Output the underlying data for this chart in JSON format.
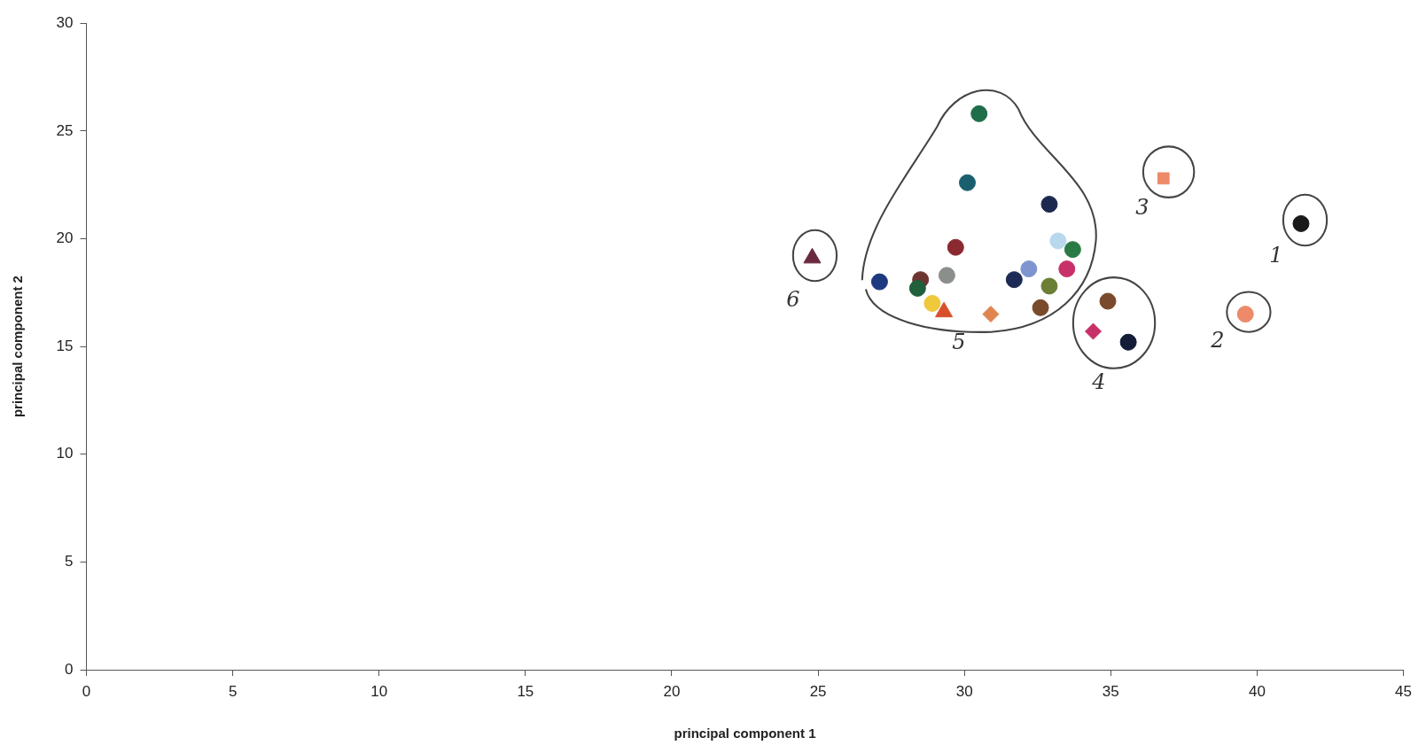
{
  "chart_data": {
    "type": "scatter",
    "xlabel": "principal component 1",
    "ylabel": "principal component 2",
    "xlim": [
      0,
      45
    ],
    "ylim": [
      0,
      30
    ],
    "xticks": [
      0,
      5,
      10,
      15,
      20,
      25,
      30,
      35,
      40,
      45
    ],
    "yticks": [
      0,
      5,
      10,
      15,
      20,
      25,
      30
    ],
    "grid": false,
    "legend": false,
    "series": [
      {
        "marker": "circle",
        "x": [
          30.5,
          30.1,
          32.9,
          33.2,
          33.7,
          33.5,
          32.2,
          31.7,
          32.9,
          32.6,
          27.1,
          28.5,
          28.4,
          29.4,
          28.9,
          34.9,
          35.6,
          39.6
        ],
        "values": [
          25.8,
          22.6,
          21.6,
          19.9,
          19.5,
          18.6,
          18.6,
          18.1,
          17.8,
          16.8,
          18.0,
          18.1,
          17.7,
          18.3,
          17.0,
          17.1,
          15.2,
          16.5
        ],
        "colors": [
          "#1e6e4a",
          "#1a5f70",
          "#1c2850",
          "#b8d8ee",
          "#2a7a45",
          "#c8306a",
          "#7f95d0",
          "#1c2a55",
          "#6b7f35",
          "#7a4a2c",
          "#1d3a80",
          "#6e3530",
          "#20603a",
          "#8a8f8c",
          "#f0c83c",
          "#7a4a2c",
          "#141c38",
          "#ec8a6a"
        ]
      },
      {
        "marker": "circle",
        "x": [
          29.7,
          41.5
        ],
        "values": [
          19.6,
          20.7
        ],
        "colors": [
          "#8a2a30",
          "#1a1a1a"
        ]
      },
      {
        "marker": "triangle",
        "x": [
          29.3,
          24.8
        ],
        "values": [
          16.6,
          19.1
        ],
        "colors": [
          "#d8502c",
          "#6a2a40"
        ]
      },
      {
        "marker": "diamond",
        "x": [
          30.9,
          34.4
        ],
        "values": [
          16.5,
          15.7
        ],
        "colors": [
          "#e08550",
          "#c83068"
        ]
      },
      {
        "marker": "square",
        "x": [
          36.8
        ],
        "values": [
          22.8
        ],
        "colors": [
          "#ec8a6a"
        ]
      }
    ],
    "annotations": [
      "1",
      "2",
      "3",
      "4",
      "5",
      "6"
    ]
  }
}
